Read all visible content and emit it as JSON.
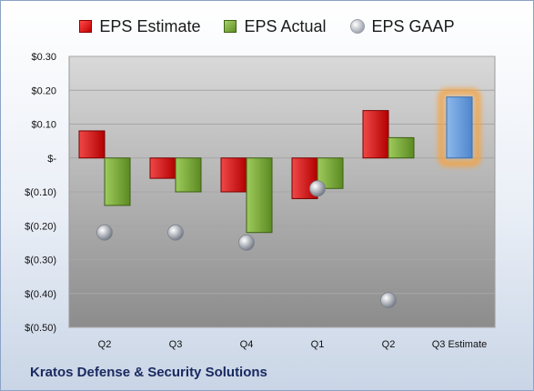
{
  "chart_data": {
    "type": "bar",
    "categories": [
      "Q2",
      "Q3",
      "Q4",
      "Q1",
      "Q2",
      "Q3 Estimate"
    ],
    "series": [
      {
        "name": "EPS Estimate",
        "color": "#d91e1e",
        "values": [
          0.08,
          -0.06,
          -0.1,
          -0.12,
          0.14,
          0.18
        ]
      },
      {
        "name": "EPS Actual",
        "color": "#7aab3a",
        "values": [
          -0.14,
          -0.1,
          -0.22,
          -0.09,
          0.06,
          null
        ]
      },
      {
        "name": "EPS GAAP",
        "color": "#a9adb5",
        "values": [
          -0.22,
          -0.22,
          -0.25,
          -0.09,
          -0.42,
          null
        ]
      }
    ],
    "estimate_highlight": {
      "category_index": 5,
      "bar_color": "#6fa0dc",
      "glow_color": "#f7a23c"
    },
    "yticks": [
      {
        "value": 0.3,
        "label": "$0.30"
      },
      {
        "value": 0.2,
        "label": "$0.20"
      },
      {
        "value": 0.1,
        "label": "$0.10"
      },
      {
        "value": 0.0,
        "label": "$-"
      },
      {
        "value": -0.1,
        "label": "$(0.10)"
      },
      {
        "value": -0.2,
        "label": "$(0.20)"
      },
      {
        "value": -0.3,
        "label": "$(0.30)"
      },
      {
        "value": -0.4,
        "label": "$(0.40)"
      },
      {
        "value": -0.5,
        "label": "$(0.50)"
      }
    ],
    "ylim": [
      -0.5,
      0.3
    ],
    "grid": true,
    "legend": "top-center",
    "footer": "Kratos Defense & Security Solutions"
  }
}
